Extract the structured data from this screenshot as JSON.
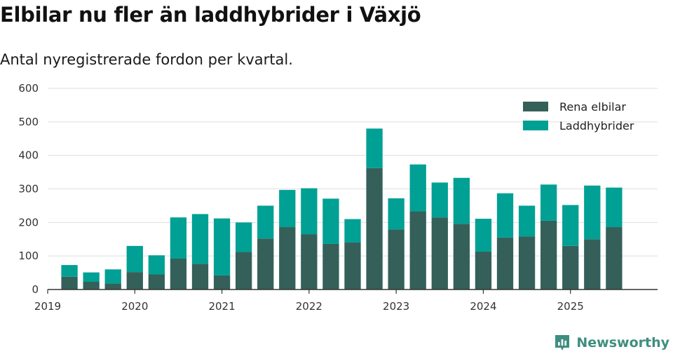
{
  "title": "Elbilar nu fler än laddhybrider i Växjö",
  "subtitle": "Antal nyregistrerade fordon per kvartal.",
  "brand": "Newsworthy",
  "chart_data": {
    "type": "bar",
    "stacked": true,
    "x_start": 2019.0,
    "x_end": 2026.0,
    "bar_span_quarters": 0.75,
    "quarters": [
      "2019-Q2",
      "2019-Q3",
      "2019-Q4",
      "2020-Q1",
      "2020-Q2",
      "2020-Q3",
      "2020-Q4",
      "2021-Q1",
      "2021-Q2",
      "2021-Q3",
      "2021-Q4",
      "2022-Q1",
      "2022-Q2",
      "2022-Q3",
      "2022-Q4",
      "2023-Q1",
      "2023-Q2",
      "2023-Q3",
      "2023-Q4",
      "2024-Q1",
      "2024-Q2",
      "2024-Q3",
      "2024-Q4",
      "2025-Q1",
      "2025-Q2",
      "2025-Q3"
    ],
    "x_positions": [
      2019.25,
      2019.5,
      2019.75,
      2020.0,
      2020.25,
      2020.5,
      2020.75,
      2021.0,
      2021.25,
      2021.5,
      2021.75,
      2022.0,
      2022.25,
      2022.5,
      2022.75,
      2023.0,
      2023.25,
      2023.5,
      2023.75,
      2024.0,
      2024.25,
      2024.5,
      2024.75,
      2025.0,
      2025.25,
      2025.5
    ],
    "series": [
      {
        "name": "Rena elbilar",
        "color": "#35605a",
        "values": [
          38,
          23,
          18,
          52,
          45,
          92,
          77,
          42,
          112,
          152,
          186,
          165,
          136,
          140,
          362,
          179,
          233,
          215,
          196,
          113,
          155,
          158,
          205,
          130,
          150,
          186
        ]
      },
      {
        "name": "Laddhybrider",
        "color": "#00a094",
        "values": [
          35,
          28,
          42,
          78,
          57,
          123,
          148,
          170,
          88,
          98,
          111,
          137,
          135,
          70,
          118,
          93,
          140,
          104,
          137,
          98,
          132,
          92,
          108,
          122,
          160,
          118
        ]
      }
    ],
    "x_ticks": [
      2019,
      2020,
      2021,
      2022,
      2023,
      2024,
      2025
    ],
    "x_tick_labels": [
      "2019",
      "2020",
      "2021",
      "2022",
      "2023",
      "2024",
      "2025"
    ],
    "y_ticks": [
      0,
      100,
      200,
      300,
      400,
      500,
      600
    ],
    "ylim": [
      0,
      600
    ],
    "grid": true,
    "legend_position": "top-right",
    "xlabel": "",
    "ylabel": ""
  }
}
